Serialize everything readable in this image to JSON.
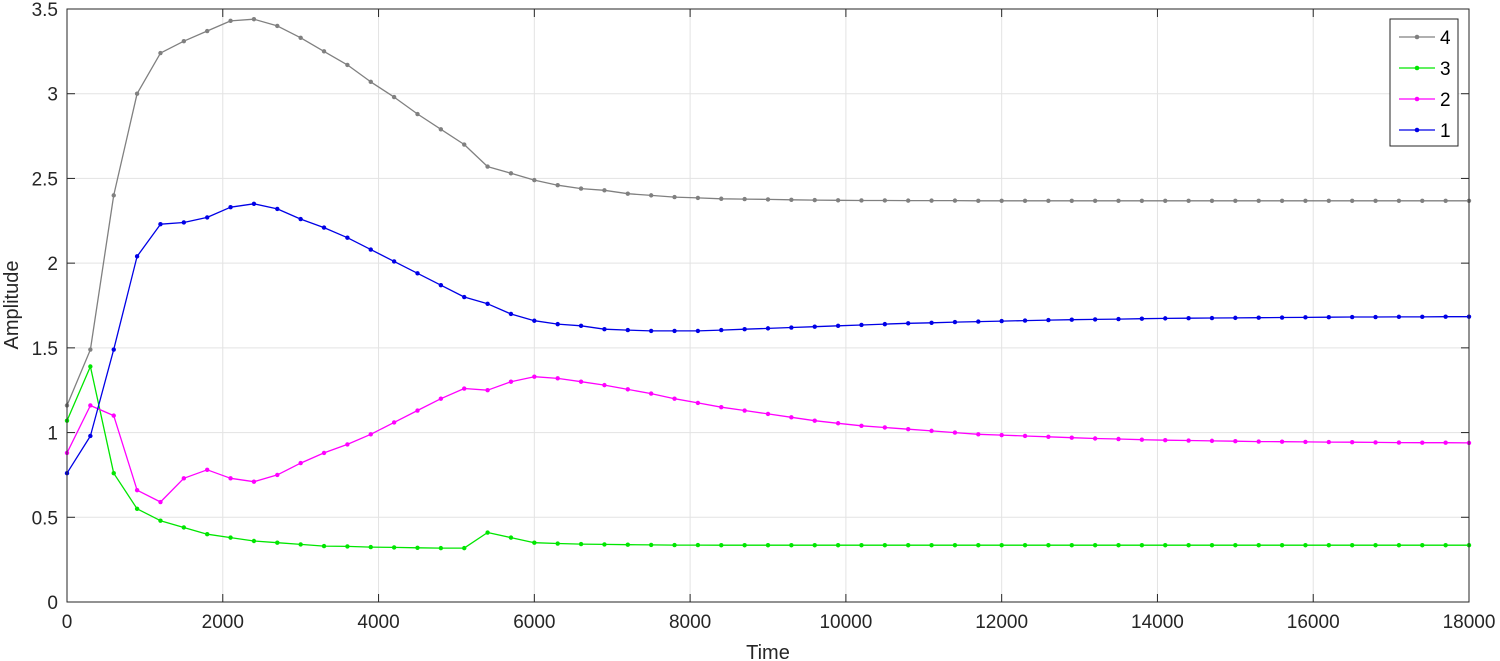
{
  "chart_data": {
    "type": "line",
    "title": "",
    "xlabel": "Time",
    "ylabel": "Amplitude",
    "xlim": [
      0,
      18000
    ],
    "ylim": [
      0,
      3.5
    ],
    "xticks": [
      0,
      2000,
      4000,
      6000,
      8000,
      10000,
      12000,
      14000,
      16000,
      18000
    ],
    "yticks": [
      0,
      0.5,
      1,
      1.5,
      2,
      2.5,
      3,
      3.5
    ],
    "xtick_labels": [
      "0",
      "2000",
      "4000",
      "6000",
      "8000",
      "10000",
      "12000",
      "14000",
      "16000",
      "18000"
    ],
    "ytick_labels": [
      "0",
      "0.5",
      "1",
      "1.5",
      "2",
      "2.5",
      "3",
      "3.5"
    ],
    "grid": true,
    "legend_position": "top-right",
    "x": [
      0,
      300,
      600,
      900,
      1200,
      1500,
      1800,
      2100,
      2400,
      2700,
      3000,
      3300,
      3600,
      3900,
      4200,
      4500,
      4800,
      5100,
      5400,
      5700,
      6000,
      6300,
      6600,
      6900,
      7200,
      7500,
      7800,
      8100,
      8400,
      8700,
      9000,
      9300,
      9600,
      9900,
      10200,
      10500,
      10800,
      11100,
      11400,
      11700,
      12000,
      12300,
      12600,
      12900,
      13200,
      13500,
      13800,
      14100,
      14400,
      14700,
      15000,
      15300,
      15600,
      15900,
      16200,
      16500,
      16800,
      17100,
      17400,
      17700,
      18000
    ],
    "series": [
      {
        "name": "4",
        "color": "#808080",
        "values": [
          1.16,
          1.49,
          2.4,
          3.0,
          3.24,
          3.31,
          3.37,
          3.43,
          3.44,
          3.4,
          3.33,
          3.25,
          3.17,
          3.07,
          2.98,
          2.88,
          2.79,
          2.7,
          2.57,
          2.53,
          2.49,
          2.46,
          2.44,
          2.43,
          2.41,
          2.4,
          2.39,
          2.385,
          2.38,
          2.378,
          2.376,
          2.374,
          2.372,
          2.371,
          2.37,
          2.37,
          2.369,
          2.369,
          2.369,
          2.368,
          2.368,
          2.368,
          2.368,
          2.368,
          2.368,
          2.368,
          2.368,
          2.368,
          2.368,
          2.368,
          2.368,
          2.368,
          2.368,
          2.368,
          2.368,
          2.368,
          2.368,
          2.368,
          2.368,
          2.368,
          2.368
        ]
      },
      {
        "name": "3",
        "color": "#00e600",
        "values": [
          1.07,
          1.39,
          0.76,
          0.55,
          0.48,
          0.44,
          0.4,
          0.38,
          0.36,
          0.35,
          0.34,
          0.33,
          0.328,
          0.324,
          0.322,
          0.32,
          0.318,
          0.318,
          0.41,
          0.38,
          0.35,
          0.345,
          0.342,
          0.34,
          0.338,
          0.337,
          0.336,
          0.336,
          0.335,
          0.335,
          0.335,
          0.335,
          0.335,
          0.335,
          0.335,
          0.335,
          0.335,
          0.335,
          0.335,
          0.335,
          0.335,
          0.335,
          0.335,
          0.335,
          0.335,
          0.335,
          0.335,
          0.335,
          0.335,
          0.335,
          0.335,
          0.335,
          0.335,
          0.335,
          0.335,
          0.335,
          0.335,
          0.335,
          0.335,
          0.335,
          0.335
        ]
      },
      {
        "name": "2",
        "color": "#ff00ff",
        "values": [
          0.88,
          1.16,
          1.1,
          0.66,
          0.59,
          0.73,
          0.78,
          0.73,
          0.71,
          0.75,
          0.82,
          0.88,
          0.93,
          0.99,
          1.06,
          1.13,
          1.2,
          1.26,
          1.25,
          1.3,
          1.33,
          1.32,
          1.3,
          1.28,
          1.255,
          1.23,
          1.2,
          1.175,
          1.15,
          1.13,
          1.11,
          1.09,
          1.07,
          1.055,
          1.04,
          1.03,
          1.02,
          1.01,
          1.0,
          0.99,
          0.985,
          0.98,
          0.975,
          0.97,
          0.965,
          0.962,
          0.958,
          0.955,
          0.953,
          0.951,
          0.949,
          0.947,
          0.946,
          0.945,
          0.944,
          0.943,
          0.942,
          0.941,
          0.94,
          0.94,
          0.939
        ]
      },
      {
        "name": "1",
        "color": "#0000e6",
        "values": [
          0.76,
          0.98,
          1.49,
          2.04,
          2.23,
          2.24,
          2.27,
          2.33,
          2.35,
          2.32,
          2.26,
          2.21,
          2.15,
          2.08,
          2.01,
          1.94,
          1.87,
          1.8,
          1.76,
          1.7,
          1.66,
          1.64,
          1.63,
          1.61,
          1.605,
          1.6,
          1.6,
          1.6,
          1.605,
          1.61,
          1.615,
          1.62,
          1.625,
          1.63,
          1.635,
          1.64,
          1.645,
          1.648,
          1.652,
          1.655,
          1.658,
          1.661,
          1.664,
          1.666,
          1.668,
          1.67,
          1.672,
          1.674,
          1.675,
          1.676,
          1.677,
          1.678,
          1.679,
          1.68,
          1.681,
          1.682,
          1.682,
          1.683,
          1.683,
          1.684,
          1.684
        ]
      }
    ]
  }
}
